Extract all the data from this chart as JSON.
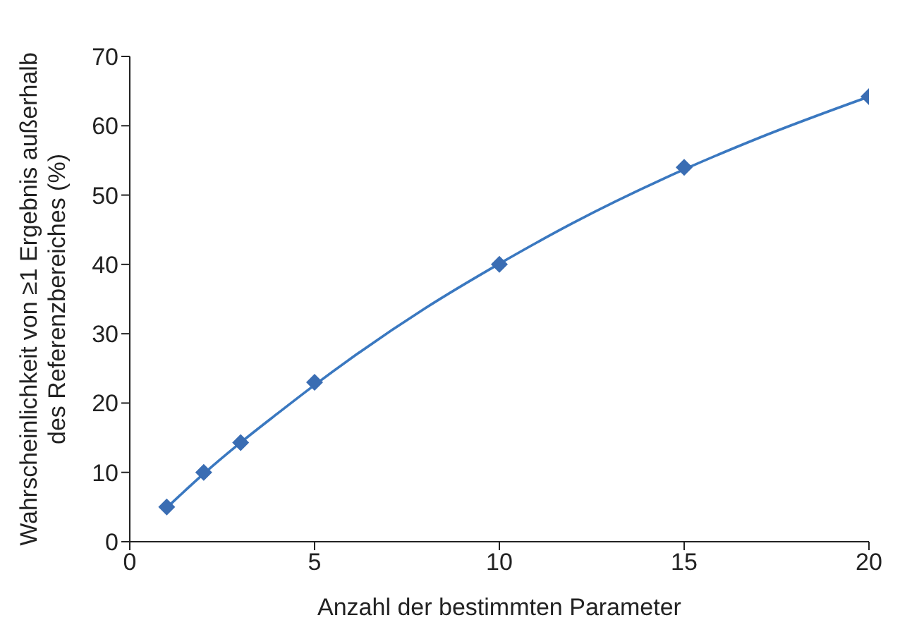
{
  "chart_data": {
    "type": "scatter",
    "xlabel": "Anzahl der bestimmten Parameter",
    "ylabel": "Wahrscheinlichkeit von ≥1 Ergebnis außerhalb\ndes Referenzbereiches (%)",
    "xlim": [
      0,
      20
    ],
    "xticks": [
      0,
      5,
      10,
      15,
      20
    ],
    "ylim": [
      0,
      70
    ],
    "yticks": [
      0,
      10,
      20,
      30,
      40,
      50,
      60,
      70
    ],
    "marker": "diamond",
    "series": [
      {
        "color": "#3a6db3",
        "x": [
          1,
          2,
          3,
          5,
          10,
          15,
          20
        ],
        "values": [
          5,
          10,
          14.3,
          23,
          40,
          54,
          64.2
        ]
      },
      {
        "type": "line",
        "color": "#3a78c0",
        "marker": "none",
        "line_style": "solid",
        "x": [
          1,
          2,
          3,
          4,
          5,
          6,
          8,
          10,
          12,
          15,
          17,
          20
        ],
        "values": [
          4.9,
          9.8,
          14.3,
          18.5,
          22.6,
          26.5,
          33.7,
          40.1,
          46,
          53.7,
          58.2,
          64.2
        ]
      }
    ]
  }
}
